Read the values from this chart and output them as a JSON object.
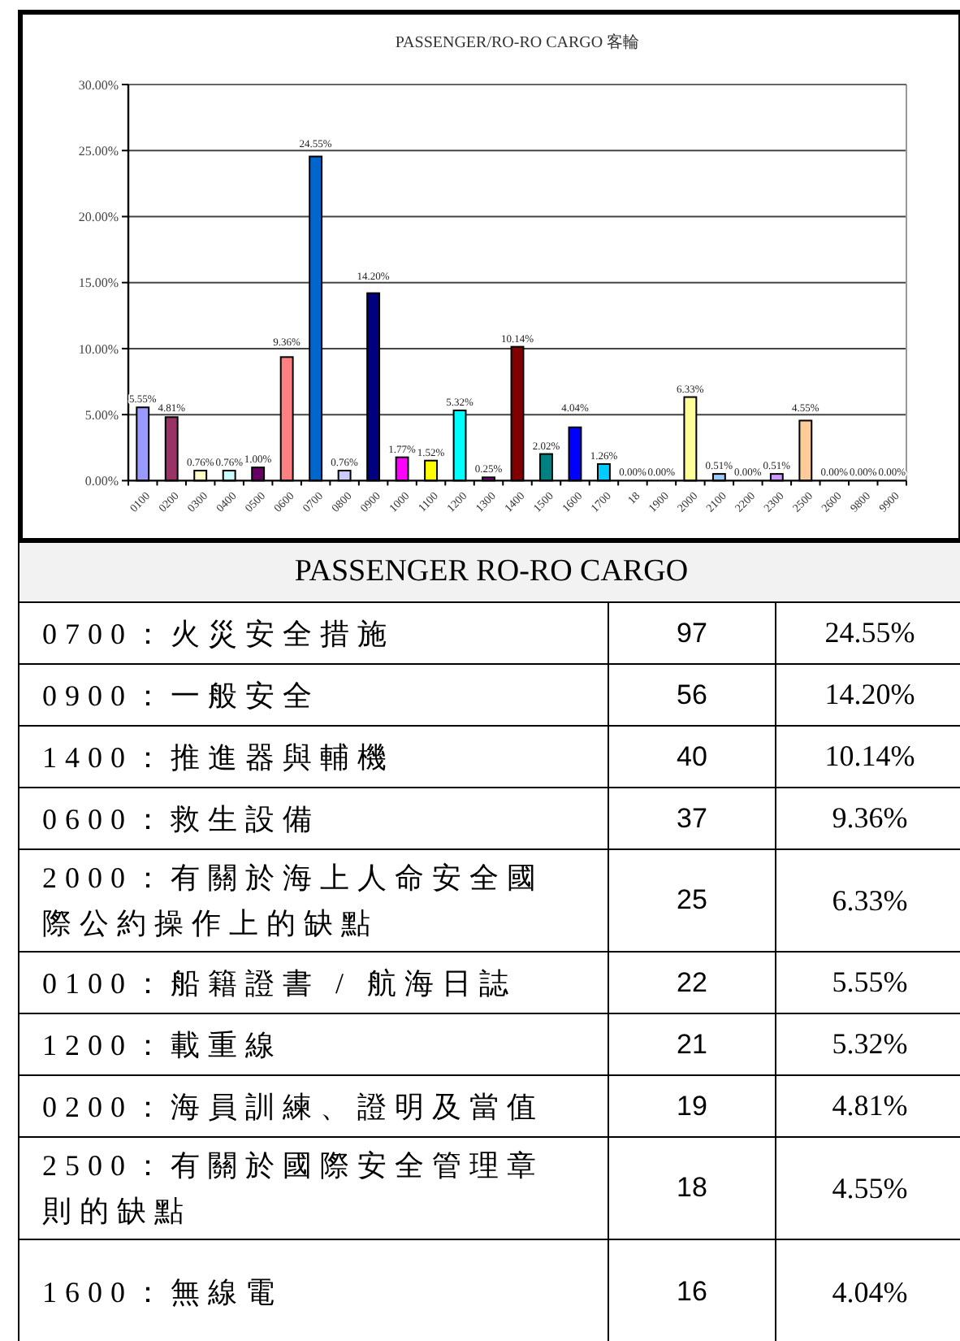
{
  "chart_data": [
    {
      "type": "bar",
      "title": "PASSENGER/RO-RO CARGO 客輪",
      "categories": [
        "0100",
        "0200",
        "0300",
        "0400",
        "0500",
        "0600",
        "0700",
        "0800",
        "0900",
        "1000",
        "1100",
        "1200",
        "1300",
        "1400",
        "1500",
        "1600",
        "1700",
        "18",
        "1900",
        "2000",
        "2100",
        "2200",
        "2300",
        "2500",
        "2600",
        "9800",
        "9900"
      ],
      "values": [
        5.55,
        4.81,
        0.76,
        0.76,
        1.0,
        9.36,
        24.55,
        0.76,
        14.2,
        1.77,
        1.52,
        5.32,
        0.25,
        10.14,
        2.02,
        4.04,
        1.26,
        0,
        0,
        6.33,
        0.51,
        0,
        0.51,
        4.55,
        0,
        0,
        0
      ],
      "value_labels": [
        "5.55%",
        "4.81%",
        "0.76%",
        "0.76%",
        "1.00%",
        "9.36%",
        "24.55%",
        "0.76%",
        "14.20%",
        "1.77%",
        "1.52%",
        "5.32%",
        "0.25%",
        "10.14%",
        "2.02%",
        "4.04%",
        "1.26%",
        "0.00%",
        "0.00%",
        "6.33%",
        "0.51%",
        "0.00%",
        "0.51%",
        "4.55%",
        "0.00%",
        "0.00%",
        "0.00%"
      ],
      "colors": [
        "#9999ff",
        "#993366",
        "#ffffcc",
        "#ccffff",
        "#660066",
        "#ff8080",
        "#0066cc",
        "#ccccff",
        "#000080",
        "#ff00ff",
        "#ffff00",
        "#00ffff",
        "#800080",
        "#800000",
        "#008080",
        "#0000ff",
        "#00ccff",
        "#ccffff",
        "#ccffcc",
        "#ffff99",
        "#99ccff",
        "#ff99cc",
        "#cc99ff",
        "#ffcc99",
        "#3366ff",
        "#33cccc",
        "#99cc00"
      ],
      "ylim": [
        0,
        30
      ],
      "yticks": [
        {
          "value": 0,
          "label": "0.00%"
        },
        {
          "value": 5,
          "label": "5.00%"
        },
        {
          "value": 10,
          "label": "10.00%"
        },
        {
          "value": 15,
          "label": "15.00%"
        },
        {
          "value": 20,
          "label": "20.00%"
        },
        {
          "value": 25,
          "label": "25.00%"
        },
        {
          "value": 30,
          "label": "30.00%"
        }
      ],
      "grid": "y"
    },
    {
      "type": "other",
      "title": "PASSENGER RO-RO CARGO",
      "categories": [
        "0700：火災安全措施",
        "0900：一般安全",
        "1400：推進器與輔機",
        "0600：救生設備",
        "2000：有關於海上人命安全國際公約操作上的缺點",
        "0100：船籍證書 / 航海日誌",
        "1200：載重線",
        "0200：海員訓練、證明及當值",
        "2500：有關於國際安全管理章則的缺點",
        "1600：無線電"
      ],
      "values": [
        97,
        56,
        40,
        37,
        25,
        22,
        21,
        19,
        18,
        16
      ],
      "data_labels": true,
      "annotations": [
        "24.55%",
        "14.20%",
        "10.14%",
        "9.36%",
        "6.33%",
        "5.55%",
        "5.32%",
        "4.81%",
        "4.55%",
        "4.04%"
      ]
    }
  ]
}
